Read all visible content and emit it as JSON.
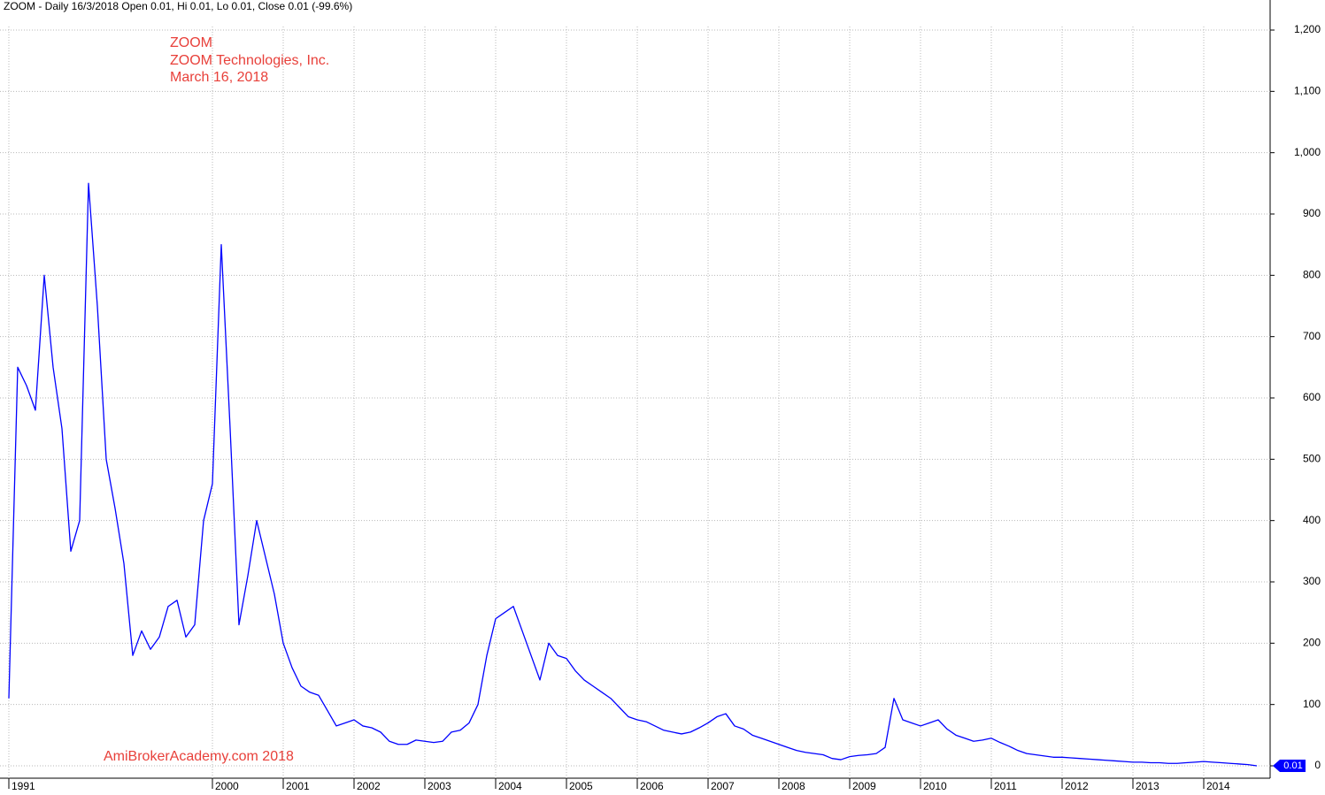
{
  "chart_data": {
    "type": "line",
    "header": "ZOOM - Daily 16/3/2018 Open 0.01, Hi 0.01, Lo 0.01, Close 0.01 (-99.6%)",
    "annotations": [
      "ZOOM",
      "ZOOM Technologies, Inc.",
      "March 16, 2018"
    ],
    "watermark": "AmiBrokerAcademy.com  2018",
    "categories": [
      "1991",
      null,
      null,
      null,
      null,
      null,
      null,
      null,
      null,
      null,
      null,
      null,
      null,
      null,
      null,
      null,
      null,
      null,
      null,
      null,
      null,
      null,
      null,
      "2000",
      null,
      null,
      null,
      null,
      null,
      null,
      null,
      "2001",
      null,
      null,
      null,
      null,
      null,
      null,
      null,
      "2002",
      null,
      null,
      null,
      null,
      null,
      null,
      null,
      "2003",
      null,
      null,
      null,
      null,
      null,
      null,
      null,
      "2004",
      null,
      null,
      null,
      null,
      null,
      null,
      null,
      "2005",
      null,
      null,
      null,
      null,
      null,
      null,
      null,
      "2006",
      null,
      null,
      null,
      null,
      null,
      null,
      null,
      "2007",
      null,
      null,
      null,
      null,
      null,
      null,
      null,
      "2008",
      null,
      null,
      null,
      null,
      null,
      null,
      null,
      "2009",
      null,
      null,
      null,
      null,
      null,
      null,
      null,
      "2010",
      null,
      null,
      null,
      null,
      null,
      null,
      null,
      "2011",
      null,
      null,
      null,
      null,
      null,
      null,
      null,
      "2012",
      null,
      null,
      null,
      null,
      null,
      null,
      null,
      "2013",
      null,
      null,
      null,
      null,
      null,
      null,
      null,
      "2014",
      null,
      null,
      null,
      null,
      null,
      null
    ],
    "series": [
      {
        "name": "ZOOM",
        "color": "#0000ff",
        "values": [
          110,
          650,
          620,
          580,
          800,
          650,
          550,
          350,
          400,
          950,
          750,
          500,
          420,
          330,
          180,
          220,
          190,
          210,
          260,
          270,
          210,
          230,
          400,
          460,
          850,
          550,
          230,
          310,
          400,
          340,
          280,
          200,
          160,
          130,
          120,
          115,
          90,
          65,
          70,
          75,
          65,
          62,
          55,
          40,
          35,
          35,
          42,
          40,
          38,
          40,
          55,
          58,
          70,
          100,
          180,
          240,
          250,
          260,
          220,
          180,
          140,
          200,
          180,
          175,
          155,
          140,
          130,
          120,
          110,
          95,
          80,
          75,
          72,
          65,
          58,
          55,
          52,
          55,
          62,
          70,
          80,
          85,
          65,
          60,
          50,
          45,
          40,
          35,
          30,
          25,
          22,
          20,
          18,
          12,
          10,
          15,
          17,
          18,
          20,
          30,
          110,
          75,
          70,
          65,
          70,
          75,
          60,
          50,
          45,
          40,
          42,
          45,
          38,
          32,
          25,
          20,
          18,
          16,
          14,
          14,
          13,
          12,
          11,
          10,
          9,
          8,
          7,
          6,
          6,
          5,
          5,
          4,
          4,
          5,
          6,
          7,
          6,
          5,
          4,
          3,
          2,
          0.01
        ]
      }
    ],
    "ylim": [
      0,
      1200
    ],
    "yticks": [
      0,
      100,
      200,
      300,
      400,
      500,
      600,
      700,
      800,
      900,
      {
        "value": 1000,
        "label": "1,000"
      },
      {
        "value": 1100,
        "label": "1,100"
      },
      {
        "value": 1200,
        "label": "1,200"
      }
    ],
    "grid": true
  }
}
